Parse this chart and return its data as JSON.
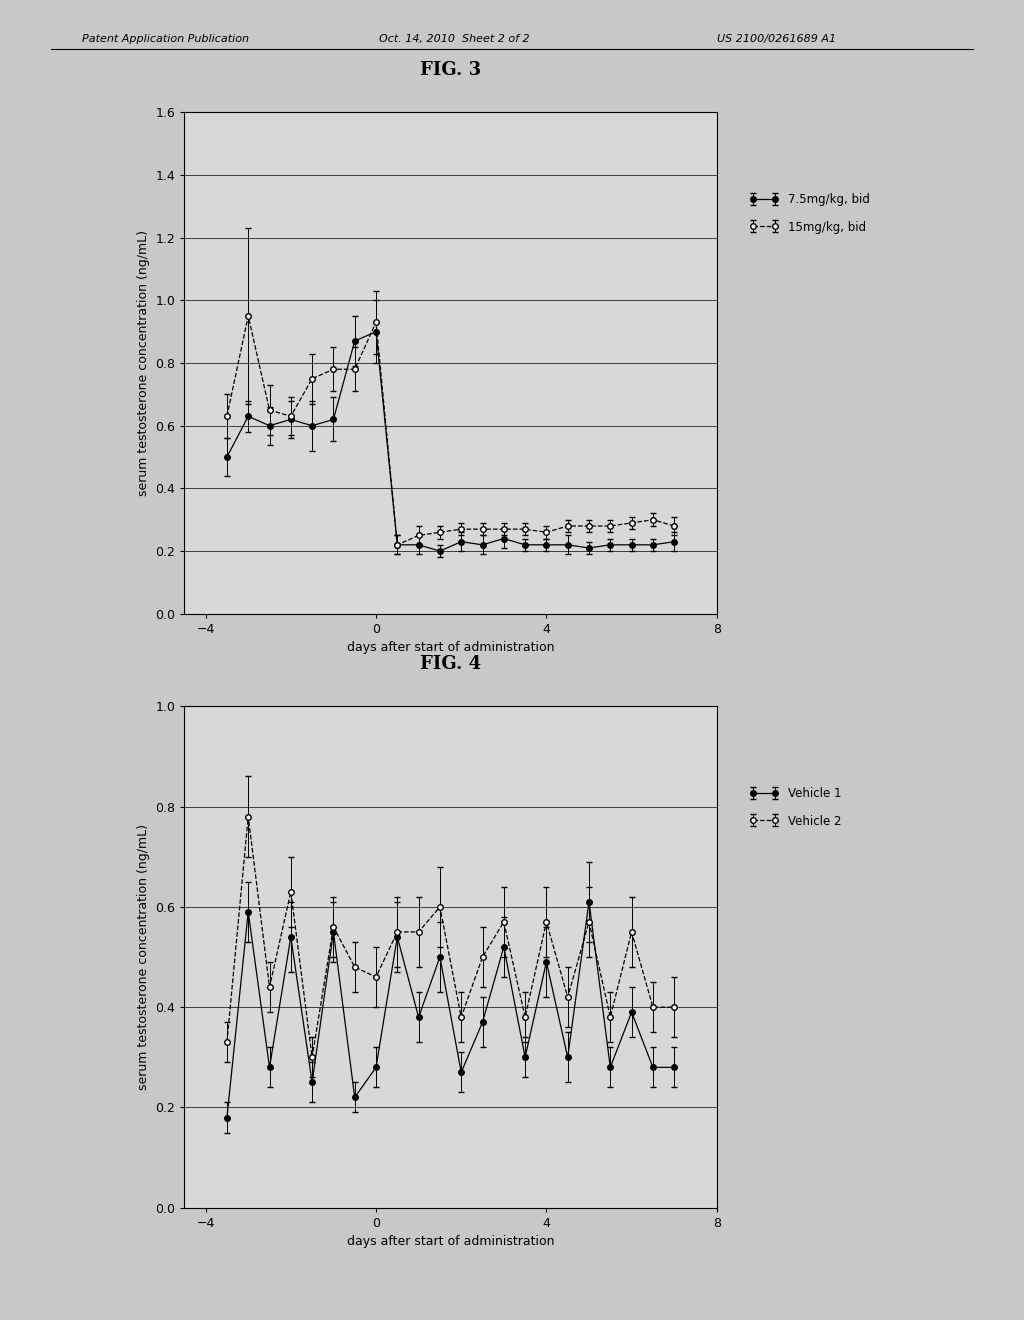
{
  "header_left": "Patent Application Publication",
  "header_center": "Oct. 14, 2010  Sheet 2 of 2",
  "header_right": "US 2100/0261689 A1",
  "fig3": {
    "title": "FIG. 3",
    "ylabel": "serum testosterone concentration (ng/mL)",
    "xlabel": "days after start of administration",
    "ylim": [
      0,
      1.6
    ],
    "xlim": [
      -4.5,
      8.0
    ],
    "yticks": [
      0,
      0.2,
      0.4,
      0.6,
      0.8,
      1.0,
      1.2,
      1.4,
      1.6
    ],
    "xticks": [
      -4,
      0,
      4,
      8
    ],
    "series1_label": "7.5mg/kg, bid",
    "series2_label": "15mg/kg, bid",
    "series1_x": [
      -3.5,
      -3,
      -2.5,
      -2,
      -1.5,
      -1,
      -0.5,
      0,
      0.5,
      1,
      1.5,
      2,
      2.5,
      3,
      3.5,
      4,
      4.5,
      5,
      5.5,
      6,
      6.5,
      7
    ],
    "series1_y": [
      0.5,
      0.63,
      0.6,
      0.62,
      0.6,
      0.62,
      0.87,
      0.9,
      0.22,
      0.22,
      0.2,
      0.23,
      0.22,
      0.24,
      0.22,
      0.22,
      0.22,
      0.21,
      0.22,
      0.22,
      0.22,
      0.23
    ],
    "series1_err": [
      0.06,
      0.05,
      0.06,
      0.06,
      0.08,
      0.07,
      0.08,
      0.1,
      0.03,
      0.03,
      0.02,
      0.03,
      0.03,
      0.03,
      0.02,
      0.02,
      0.03,
      0.02,
      0.02,
      0.02,
      0.02,
      0.03
    ],
    "series2_x": [
      -3.5,
      -3,
      -2.5,
      -2,
      -1.5,
      -1,
      -0.5,
      0,
      0.5,
      1,
      1.5,
      2,
      2.5,
      3,
      3.5,
      4,
      4.5,
      5,
      5.5,
      6,
      6.5,
      7
    ],
    "series2_y": [
      0.63,
      0.95,
      0.65,
      0.63,
      0.75,
      0.78,
      0.78,
      0.93,
      0.22,
      0.25,
      0.26,
      0.27,
      0.27,
      0.27,
      0.27,
      0.26,
      0.28,
      0.28,
      0.28,
      0.29,
      0.3,
      0.28
    ],
    "series2_err": [
      0.07,
      0.28,
      0.08,
      0.06,
      0.08,
      0.07,
      0.07,
      0.1,
      0.03,
      0.03,
      0.02,
      0.02,
      0.02,
      0.02,
      0.02,
      0.02,
      0.02,
      0.02,
      0.02,
      0.02,
      0.02,
      0.03
    ]
  },
  "fig4": {
    "title": "FIG. 4",
    "ylabel": "serum testosterone concentration (ng/mL)",
    "xlabel": "days after start of administration",
    "ylim": [
      0,
      1.0
    ],
    "xlim": [
      -4.5,
      8.0
    ],
    "yticks": [
      0,
      0.2,
      0.4,
      0.6,
      0.8,
      1.0
    ],
    "xticks": [
      -4,
      0,
      4,
      8
    ],
    "series1_label": "Vehicle 1",
    "series2_label": "Vehicle 2",
    "series1_x": [
      -3.5,
      -3,
      -2.5,
      -2,
      -1.5,
      -1,
      -0.5,
      0,
      0.5,
      1,
      1.5,
      2,
      2.5,
      3,
      3.5,
      4,
      4.5,
      5,
      5.5,
      6,
      6.5,
      7
    ],
    "series1_y": [
      0.18,
      0.59,
      0.28,
      0.54,
      0.25,
      0.55,
      0.22,
      0.28,
      0.54,
      0.38,
      0.5,
      0.27,
      0.37,
      0.52,
      0.3,
      0.49,
      0.3,
      0.61,
      0.28,
      0.39,
      0.28,
      0.28
    ],
    "series1_err": [
      0.03,
      0.06,
      0.04,
      0.07,
      0.04,
      0.06,
      0.03,
      0.04,
      0.07,
      0.05,
      0.07,
      0.04,
      0.05,
      0.06,
      0.04,
      0.07,
      0.05,
      0.08,
      0.04,
      0.05,
      0.04,
      0.04
    ],
    "series2_x": [
      -3.5,
      -3,
      -2.5,
      -2,
      -1.5,
      -1,
      -0.5,
      0,
      0.5,
      1,
      1.5,
      2,
      2.5,
      3,
      3.5,
      4,
      4.5,
      5,
      5.5,
      6,
      6.5,
      7
    ],
    "series2_y": [
      0.33,
      0.78,
      0.44,
      0.63,
      0.3,
      0.56,
      0.48,
      0.46,
      0.55,
      0.55,
      0.6,
      0.38,
      0.5,
      0.57,
      0.38,
      0.57,
      0.42,
      0.57,
      0.38,
      0.55,
      0.4,
      0.4
    ],
    "series2_err": [
      0.04,
      0.08,
      0.05,
      0.07,
      0.04,
      0.06,
      0.05,
      0.06,
      0.07,
      0.07,
      0.08,
      0.05,
      0.06,
      0.07,
      0.05,
      0.07,
      0.06,
      0.07,
      0.05,
      0.07,
      0.05,
      0.06
    ]
  },
  "bg_color": "#c8c8c8",
  "plot_bg": "#d8d8d8",
  "title_fontsize": 13,
  "axis_fontsize": 9,
  "tick_fontsize": 9,
  "legend_fontsize": 8.5,
  "header_fontsize": 8
}
